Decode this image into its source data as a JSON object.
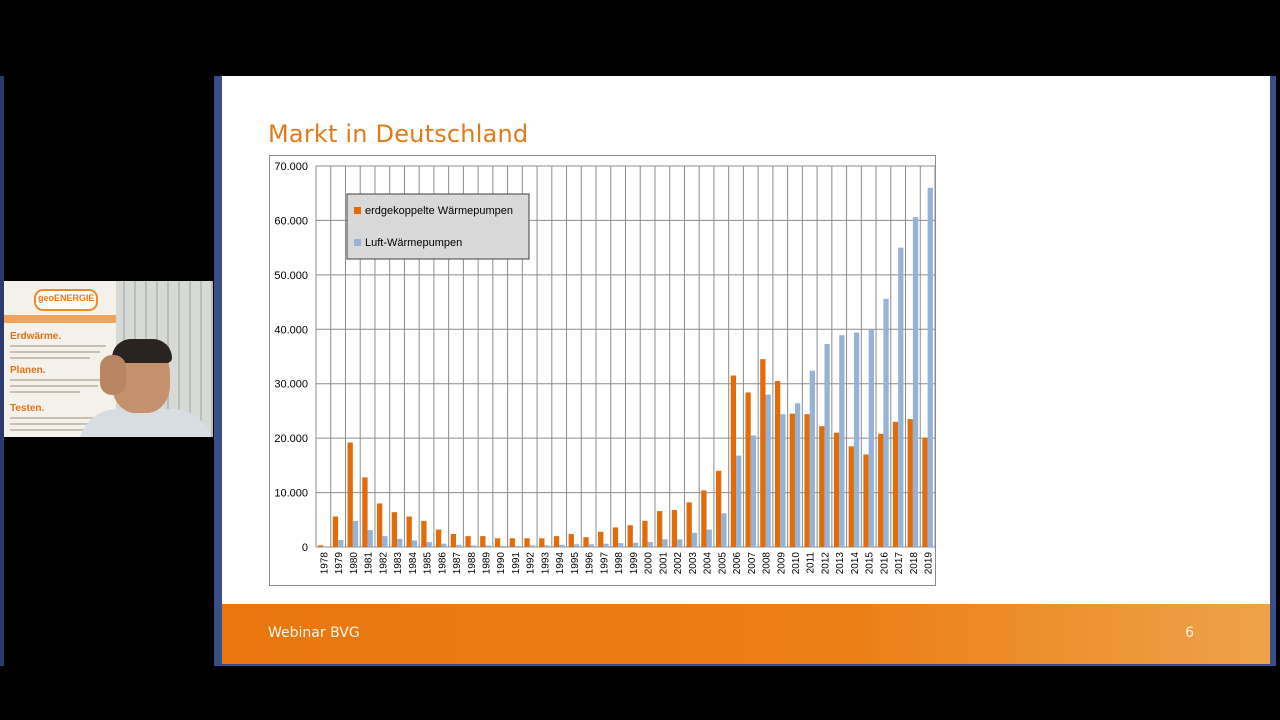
{
  "slide": {
    "title": "Markt in Deutschland",
    "footer_text": "Webinar BVG",
    "page_number": "6"
  },
  "webcam": {
    "banner_logo": "geoENERGIE",
    "banner_headings": [
      "Erdwärme.",
      "Planen.",
      "Testen."
    ]
  },
  "colors": {
    "accent_orange": "#e07b1a",
    "series_orange": "#e36c0a",
    "series_blue": "#95b3d7",
    "footer_orange": "#ec7f16"
  },
  "chart_data": {
    "type": "bar",
    "title": "",
    "xlabel": "",
    "ylabel": "",
    "ylim": [
      0,
      70000
    ],
    "ytick_labels": [
      "0",
      "10.000",
      "20.000",
      "30.000",
      "40.000",
      "50.000",
      "60.000",
      "70.000"
    ],
    "ytick_values": [
      0,
      10000,
      20000,
      30000,
      40000,
      50000,
      60000,
      70000
    ],
    "grid": true,
    "legend_position": "top-left",
    "categories": [
      "1978",
      "1979",
      "1980",
      "1981",
      "1982",
      "1983",
      "1984",
      "1985",
      "1986",
      "1987",
      "1988",
      "1989",
      "1990",
      "1991",
      "1992",
      "1993",
      "1994",
      "1995",
      "1996",
      "1997",
      "1998",
      "1999",
      "2000",
      "2001",
      "2002",
      "2003",
      "2004",
      "2005",
      "2006",
      "2007",
      "2008",
      "2009",
      "2010",
      "2011",
      "2012",
      "2013",
      "2014",
      "2015",
      "2016",
      "2017",
      "2018",
      "2019"
    ],
    "series": [
      {
        "name": "erdgekoppelte Wärmepumpen",
        "color": "#e36c0a",
        "values": [
          300,
          5600,
          19200,
          12800,
          8000,
          6400,
          5600,
          4800,
          3200,
          2400,
          2000,
          2000,
          1600,
          1600,
          1600,
          1600,
          2000,
          2400,
          1800,
          2800,
          3600,
          4000,
          4800,
          6600,
          6800,
          8200,
          10400,
          14000,
          31500,
          28400,
          34500,
          30500,
          24500,
          24400,
          22200,
          21000,
          18500,
          17000,
          20800,
          23000,
          23500,
          20100
        ]
      },
      {
        "name": "Luft-Wärmepumpen",
        "color": "#95b3d7",
        "values": [
          0,
          1300,
          4800,
          3100,
          2000,
          1500,
          1200,
          900,
          600,
          400,
          300,
          300,
          200,
          200,
          300,
          300,
          400,
          500,
          500,
          600,
          700,
          800,
          900,
          1400,
          1400,
          2600,
          3200,
          6200,
          16800,
          20500,
          28000,
          24400,
          26400,
          32400,
          37300,
          38900,
          39400,
          40000,
          45600,
          55000,
          60600,
          66000
        ]
      }
    ]
  }
}
